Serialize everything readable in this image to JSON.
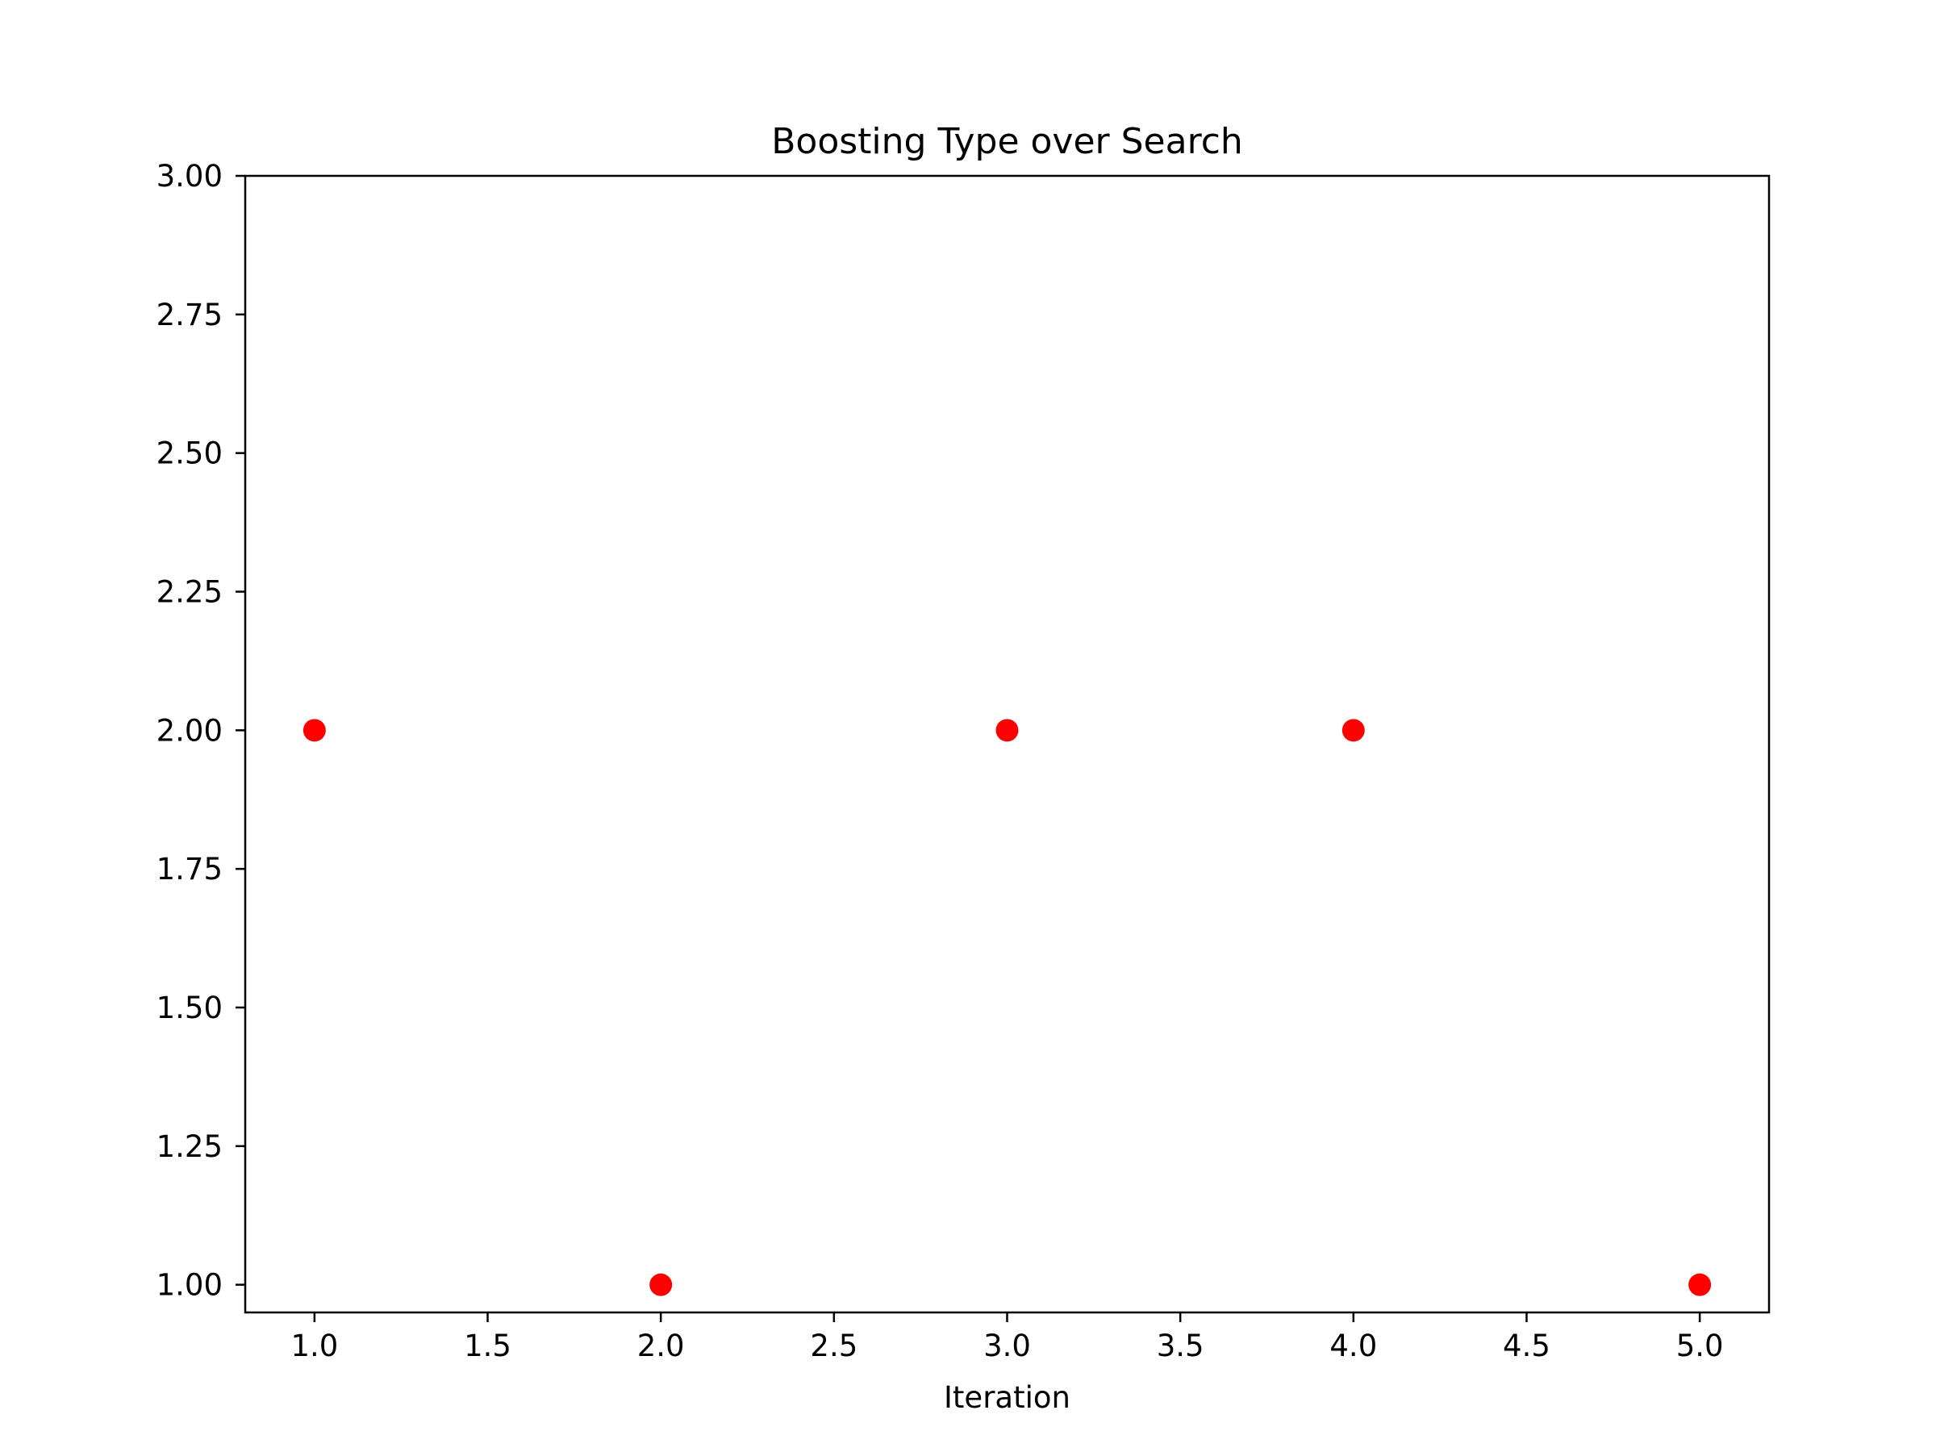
{
  "chart_data": {
    "type": "scatter",
    "title": "Boosting Type over Search",
    "xlabel": "Iteration",
    "ylabel": "",
    "xlim": [
      0.8,
      5.2
    ],
    "ylim": [
      0.95,
      3.0
    ],
    "xticks": [
      1.0,
      1.5,
      2.0,
      2.5,
      3.0,
      3.5,
      4.0,
      4.5,
      5.0
    ],
    "xtick_labels": [
      "1.0",
      "1.5",
      "2.0",
      "2.5",
      "3.0",
      "3.5",
      "4.0",
      "4.5",
      "5.0"
    ],
    "yticks": [
      1.0,
      1.25,
      1.5,
      1.75,
      2.0,
      2.25,
      2.5,
      2.75,
      3.0
    ],
    "ytick_labels": [
      "1.00",
      "1.25",
      "1.50",
      "1.75",
      "2.00",
      "2.25",
      "2.50",
      "2.75",
      "3.00"
    ],
    "grid": false,
    "series": [
      {
        "color": "#ff0000",
        "points": [
          {
            "x": 1,
            "y": 2
          },
          {
            "x": 2,
            "y": 1
          },
          {
            "x": 3,
            "y": 2
          },
          {
            "x": 4,
            "y": 2
          },
          {
            "x": 5,
            "y": 1
          }
        ]
      }
    ]
  }
}
